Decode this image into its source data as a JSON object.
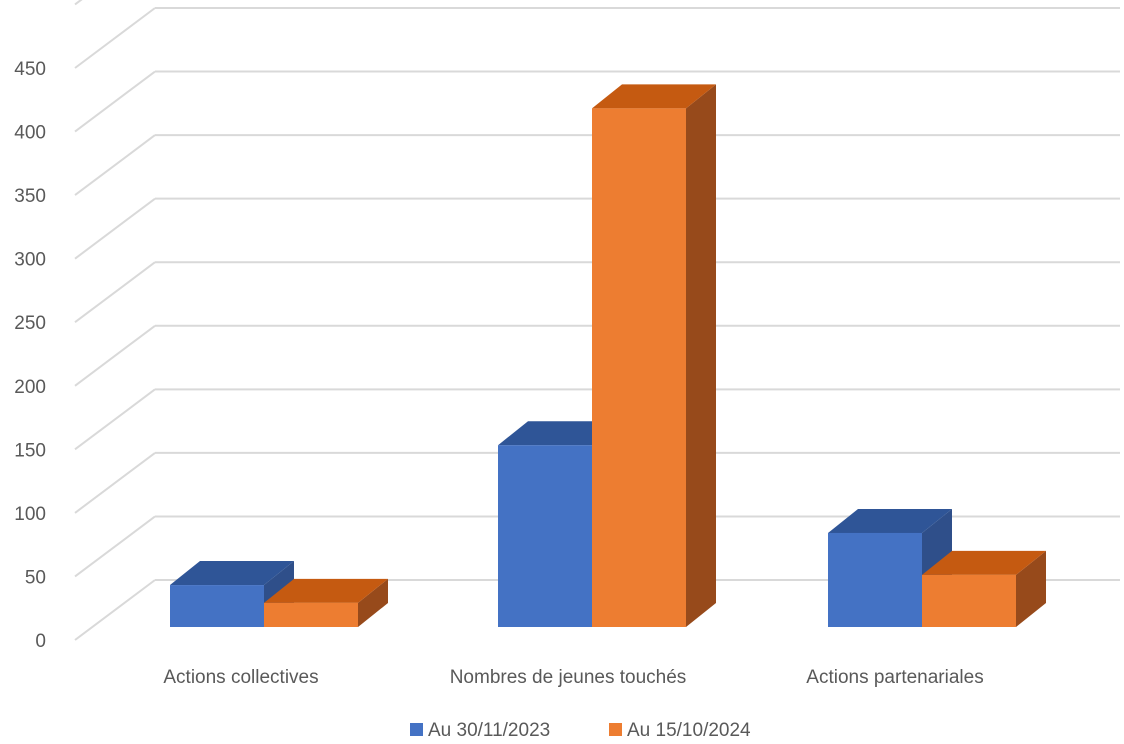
{
  "chart_data": {
    "type": "bar",
    "style": "3d-clustered-column",
    "categories": [
      "Actions collectives",
      "Nombres de jeunes touchés",
      "Actions partenariales"
    ],
    "series": [
      {
        "name": "Au 30/11/2023",
        "values": [
          33,
          143,
          74
        ],
        "color": "#4472C4",
        "top": "#2F5597",
        "side": "#2F4F8A"
      },
      {
        "name": "Au 15/10/2024",
        "values": [
          19,
          408,
          41
        ],
        "color": "#ED7D31",
        "top": "#C55A11",
        "side": "#974A1B"
      }
    ],
    "y_ticks": [
      "0",
      "50",
      "100",
      "150",
      "200",
      "250",
      "300",
      "350",
      "400",
      "450"
    ],
    "ylim": [
      0,
      450
    ],
    "grid": true,
    "legend": "bottom"
  }
}
